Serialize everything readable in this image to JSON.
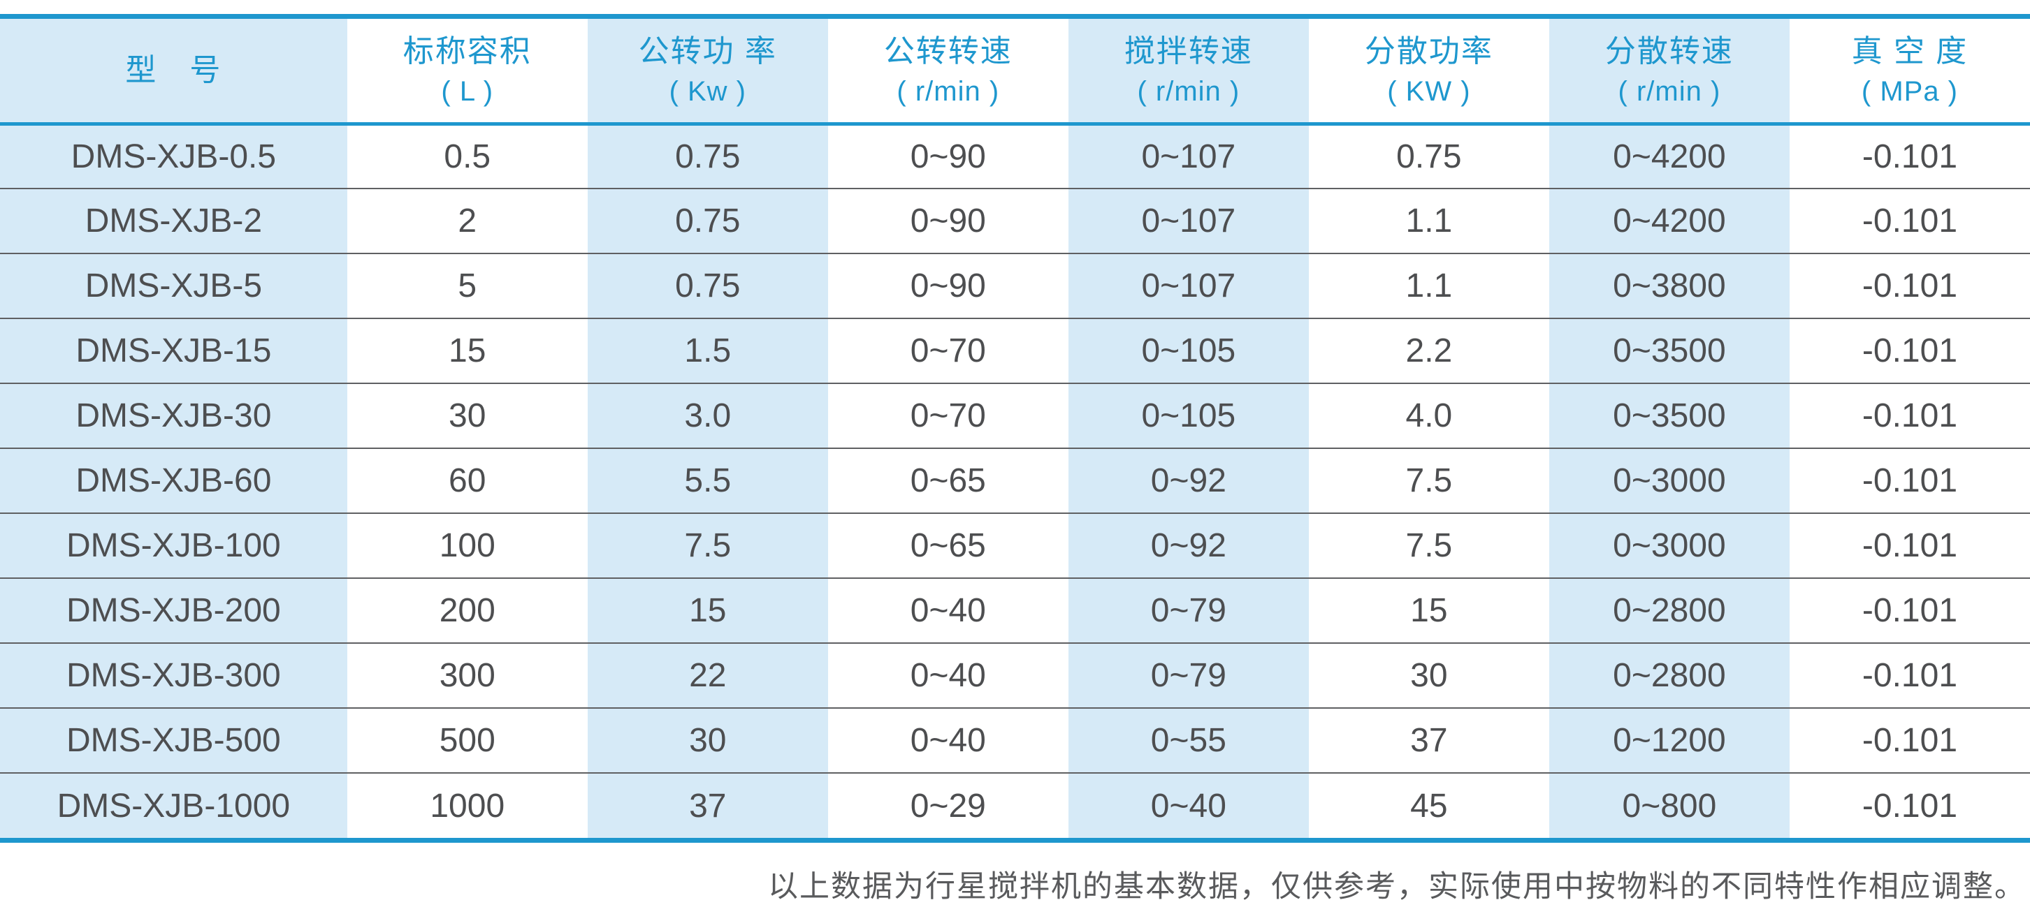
{
  "colors": {
    "accent": "#1e97ce",
    "alt_cell_bg": "#d6eaf7",
    "body_text": "#4d4e50",
    "divider": "#5f6062",
    "page_bg": "#ffffff"
  },
  "table": {
    "columns": [
      {
        "id": "model",
        "label": "型　号",
        "unit": ""
      },
      {
        "id": "nominal-capacity",
        "label": "标称容积",
        "unit": "( L )"
      },
      {
        "id": "revolution-power",
        "label": "公转功 率",
        "unit": "( Kw )"
      },
      {
        "id": "revolution-speed",
        "label": "公转转速",
        "unit": "( r/min )"
      },
      {
        "id": "stirring-speed",
        "label": "搅拌转速",
        "unit": "( r/min )"
      },
      {
        "id": "dispersing-power",
        "label": "分散功率",
        "unit": "( KW )"
      },
      {
        "id": "dispersing-speed",
        "label": "分散转速",
        "unit": "( r/min )"
      },
      {
        "id": "vacuum-degree",
        "label": "真 空 度",
        "unit": "( MPa )"
      }
    ],
    "rows": [
      [
        "DMS-XJB-0.5",
        "0.5",
        "0.75",
        "0~90",
        "0~107",
        "0.75",
        "0~4200",
        "-0.101"
      ],
      [
        "DMS-XJB-2",
        "2",
        "0.75",
        "0~90",
        "0~107",
        "1.1",
        "0~4200",
        "-0.101"
      ],
      [
        "DMS-XJB-5",
        "5",
        "0.75",
        "0~90",
        "0~107",
        "1.1",
        "0~3800",
        "-0.101"
      ],
      [
        "DMS-XJB-15",
        "15",
        "1.5",
        "0~70",
        "0~105",
        "2.2",
        "0~3500",
        "-0.101"
      ],
      [
        "DMS-XJB-30",
        "30",
        "3.0",
        "0~70",
        "0~105",
        "4.0",
        "0~3500",
        "-0.101"
      ],
      [
        "DMS-XJB-60",
        "60",
        "5.5",
        "0~65",
        "0~92",
        "7.5",
        "0~3000",
        "-0.101"
      ],
      [
        "DMS-XJB-100",
        "100",
        "7.5",
        "0~65",
        "0~92",
        "7.5",
        "0~3000",
        "-0.101"
      ],
      [
        "DMS-XJB-200",
        "200",
        "15",
        "0~40",
        "0~79",
        "15",
        "0~2800",
        "-0.101"
      ],
      [
        "DMS-XJB-300",
        "300",
        "22",
        "0~40",
        "0~79",
        "30",
        "0~2800",
        "-0.101"
      ],
      [
        "DMS-XJB-500",
        "500",
        "30",
        "0~40",
        "0~55",
        "37",
        "0~1200",
        "-0.101"
      ],
      [
        "DMS-XJB-1000",
        "1000",
        "37",
        "0~29",
        "0~40",
        "45",
        "0~800",
        "-0.101"
      ]
    ]
  },
  "footer": {
    "note": "以上数据为行星搅拌机的基本数据，仅供参考，实际使用中按物料的不同特性作相应调整。"
  }
}
